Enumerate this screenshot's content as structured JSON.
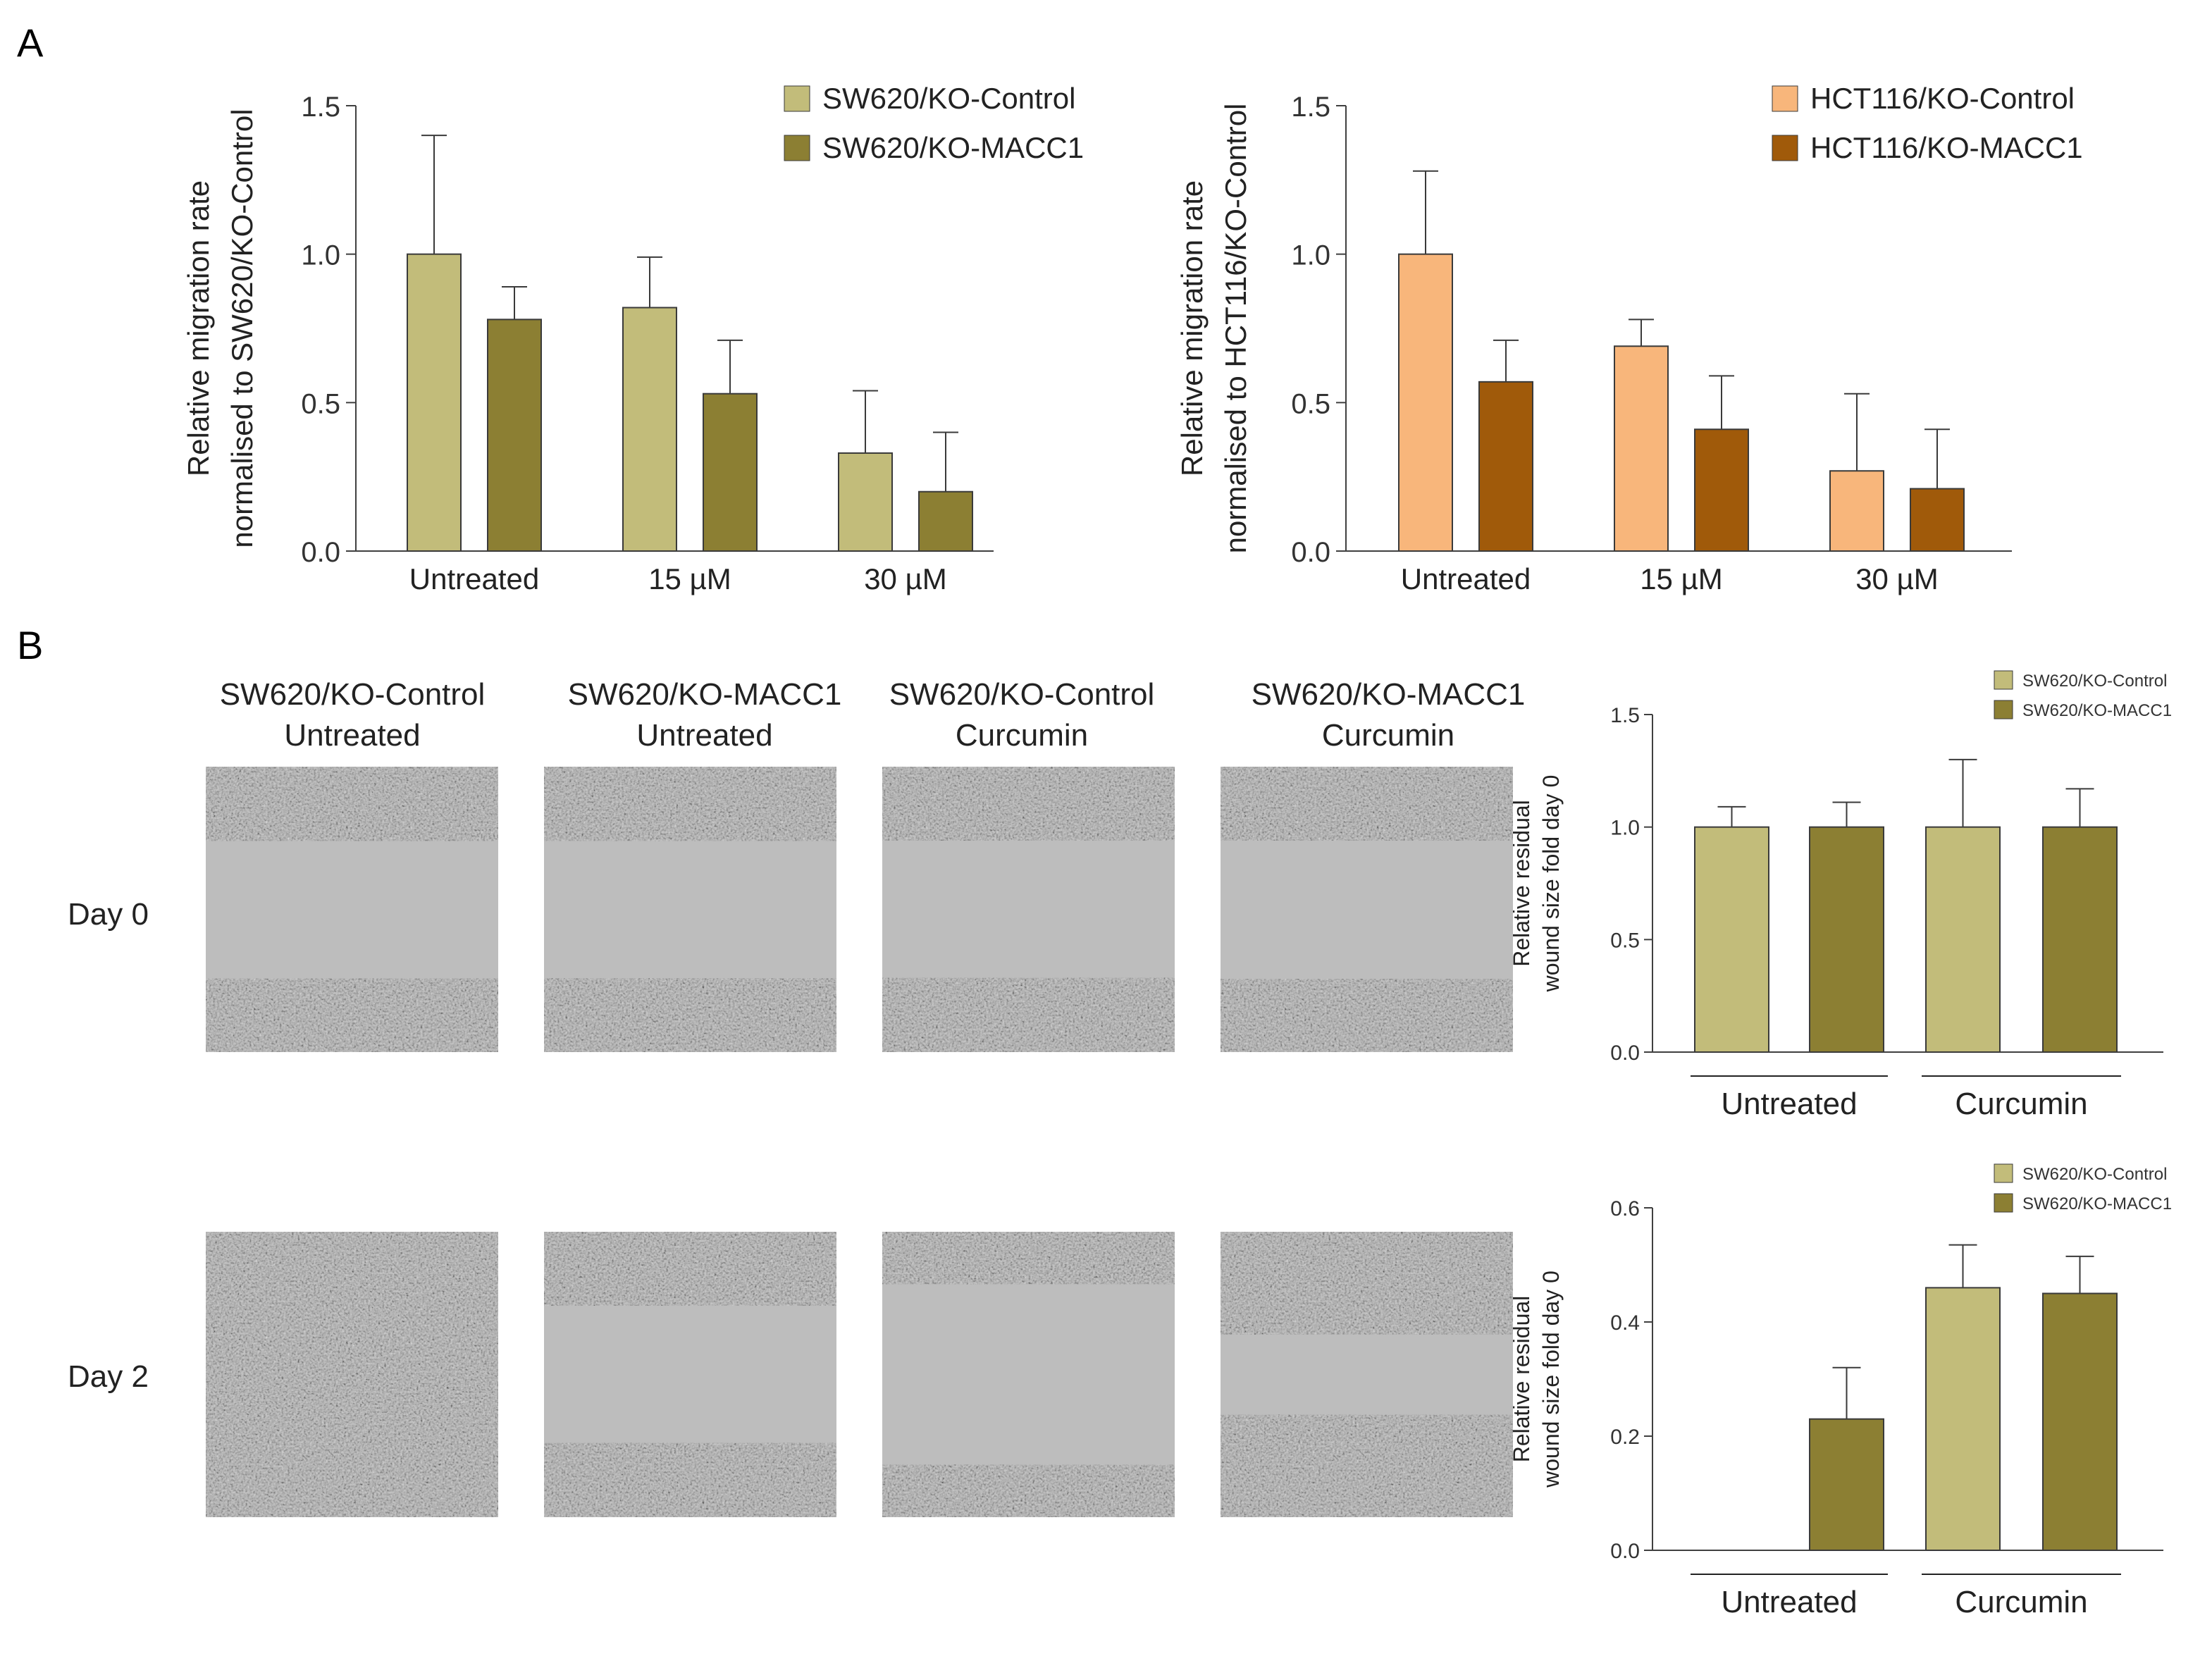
{
  "figure": {
    "panel_a_label": "A",
    "panel_b_label": "B"
  },
  "colors": {
    "sw620_control": "#c2bc7a",
    "sw620_macc1": "#8c7f33",
    "hct116_control": "#f8b67b",
    "hct116_macc1": "#a05a0a",
    "axis": "#404040",
    "micro_bg": "#bdbdbd",
    "micro_cells": "#8e8e8e"
  },
  "panel_b": {
    "columns": [
      {
        "line1": "SW620/KO-Control",
        "line2": "Untreated"
      },
      {
        "line1": "SW620/KO-MACC1",
        "line2": "Untreated"
      },
      {
        "line1": "SW620/KO-Control",
        "line2": "Curcumin"
      },
      {
        "line1": "SW620/KO-MACC1",
        "line2": "Curcumin"
      }
    ],
    "rows": [
      "Day 0",
      "Day 2"
    ],
    "images_day2_gap": [
      0,
      0.55,
      0.7,
      0.35
    ]
  },
  "chart_data": [
    {
      "type": "bar",
      "id": "A_left",
      "title": "",
      "ylabel_lines": [
        "Relative migration rate",
        "normalised to SW620/KO-Control"
      ],
      "xlabel": "",
      "categories": [
        "Untreated",
        "15 µM",
        "30 µM"
      ],
      "ylim": [
        0,
        1.5
      ],
      "yticks": [
        0.0,
        0.5,
        1.0,
        1.5
      ],
      "tick_labels": [
        "0.0",
        "0.5",
        "1.0",
        "1.5"
      ],
      "legend_position": "top-right",
      "series": [
        {
          "name": "SW620/KO-Control",
          "color": "#c2bc7a",
          "values": [
            1.0,
            0.82,
            0.33
          ],
          "errors": [
            0.4,
            0.17,
            0.21
          ]
        },
        {
          "name": "SW620/KO-MACC1",
          "color": "#8c7f33",
          "values": [
            0.78,
            0.53,
            0.2
          ],
          "errors": [
            0.11,
            0.18,
            0.2
          ]
        }
      ]
    },
    {
      "type": "bar",
      "id": "A_right",
      "title": "",
      "ylabel_lines": [
        "Relative migration rate",
        "normalised to HCT116/KO-Control"
      ],
      "xlabel": "",
      "categories": [
        "Untreated",
        "15 µM",
        "30 µM"
      ],
      "ylim": [
        0,
        1.5
      ],
      "yticks": [
        0.0,
        0.5,
        1.0,
        1.5
      ],
      "tick_labels": [
        "0.0",
        "0.5",
        "1.0",
        "1.5"
      ],
      "legend_position": "top-right",
      "series": [
        {
          "name": "HCT116/KO-Control",
          "color": "#f8b67b",
          "values": [
            1.0,
            0.69,
            0.27
          ],
          "errors": [
            0.28,
            0.09,
            0.26
          ]
        },
        {
          "name": "HCT116/KO-MACC1",
          "color": "#a05a0a",
          "values": [
            0.57,
            0.41,
            0.21
          ],
          "errors": [
            0.14,
            0.18,
            0.2
          ]
        }
      ]
    },
    {
      "type": "bar",
      "id": "B_day0",
      "title": "Day 0",
      "ylabel_lines": [
        "Relative residual",
        "wound size fold day 0"
      ],
      "xlabel": "",
      "categories": [
        "SW620/KO-Control Untreated",
        "SW620/KO-MACC1 Untreated",
        "SW620/KO-Control Curcumin",
        "SW620/KO-MACC1 Curcumin"
      ],
      "group_labels": [
        "Untreated",
        "Curcumin"
      ],
      "ylim": [
        0,
        1.5
      ],
      "yticks": [
        0.0,
        0.5,
        1.0,
        1.5
      ],
      "tick_labels": [
        "0.0",
        "0.5",
        "1.0",
        "1.5"
      ],
      "legend_position": "top-right",
      "legend": [
        "SW620/KO-Control",
        "SW620/KO-MACC1"
      ],
      "bar_colors": [
        "#c2bc7a",
        "#8c7f33",
        "#c2bc7a",
        "#8c7f33"
      ],
      "values": [
        1.0,
        1.0,
        1.0,
        1.0
      ],
      "errors": [
        0.09,
        0.11,
        0.3,
        0.17
      ]
    },
    {
      "type": "bar",
      "id": "B_day2",
      "title": "Day 2",
      "ylabel_lines": [
        "Relative residual",
        "wound size fold day 0"
      ],
      "xlabel": "",
      "categories": [
        "SW620/KO-Control Untreated",
        "SW620/KO-MACC1 Untreated",
        "SW620/KO-Control Curcumin",
        "SW620/KO-MACC1 Curcumin"
      ],
      "group_labels": [
        "Untreated",
        "Curcumin"
      ],
      "ylim": [
        0,
        0.6
      ],
      "yticks": [
        0.0,
        0.2,
        0.4,
        0.6
      ],
      "tick_labels": [
        "0.0",
        "0.2",
        "0.4",
        "0.6"
      ],
      "legend_position": "top-right",
      "legend": [
        "SW620/KO-Control",
        "SW620/KO-MACC1"
      ],
      "bar_colors": [
        "#c2bc7a",
        "#8c7f33",
        "#c2bc7a",
        "#8c7f33"
      ],
      "values": [
        0.0,
        0.23,
        0.46,
        0.45
      ],
      "errors": [
        0.0,
        0.09,
        0.075,
        0.065
      ]
    }
  ]
}
